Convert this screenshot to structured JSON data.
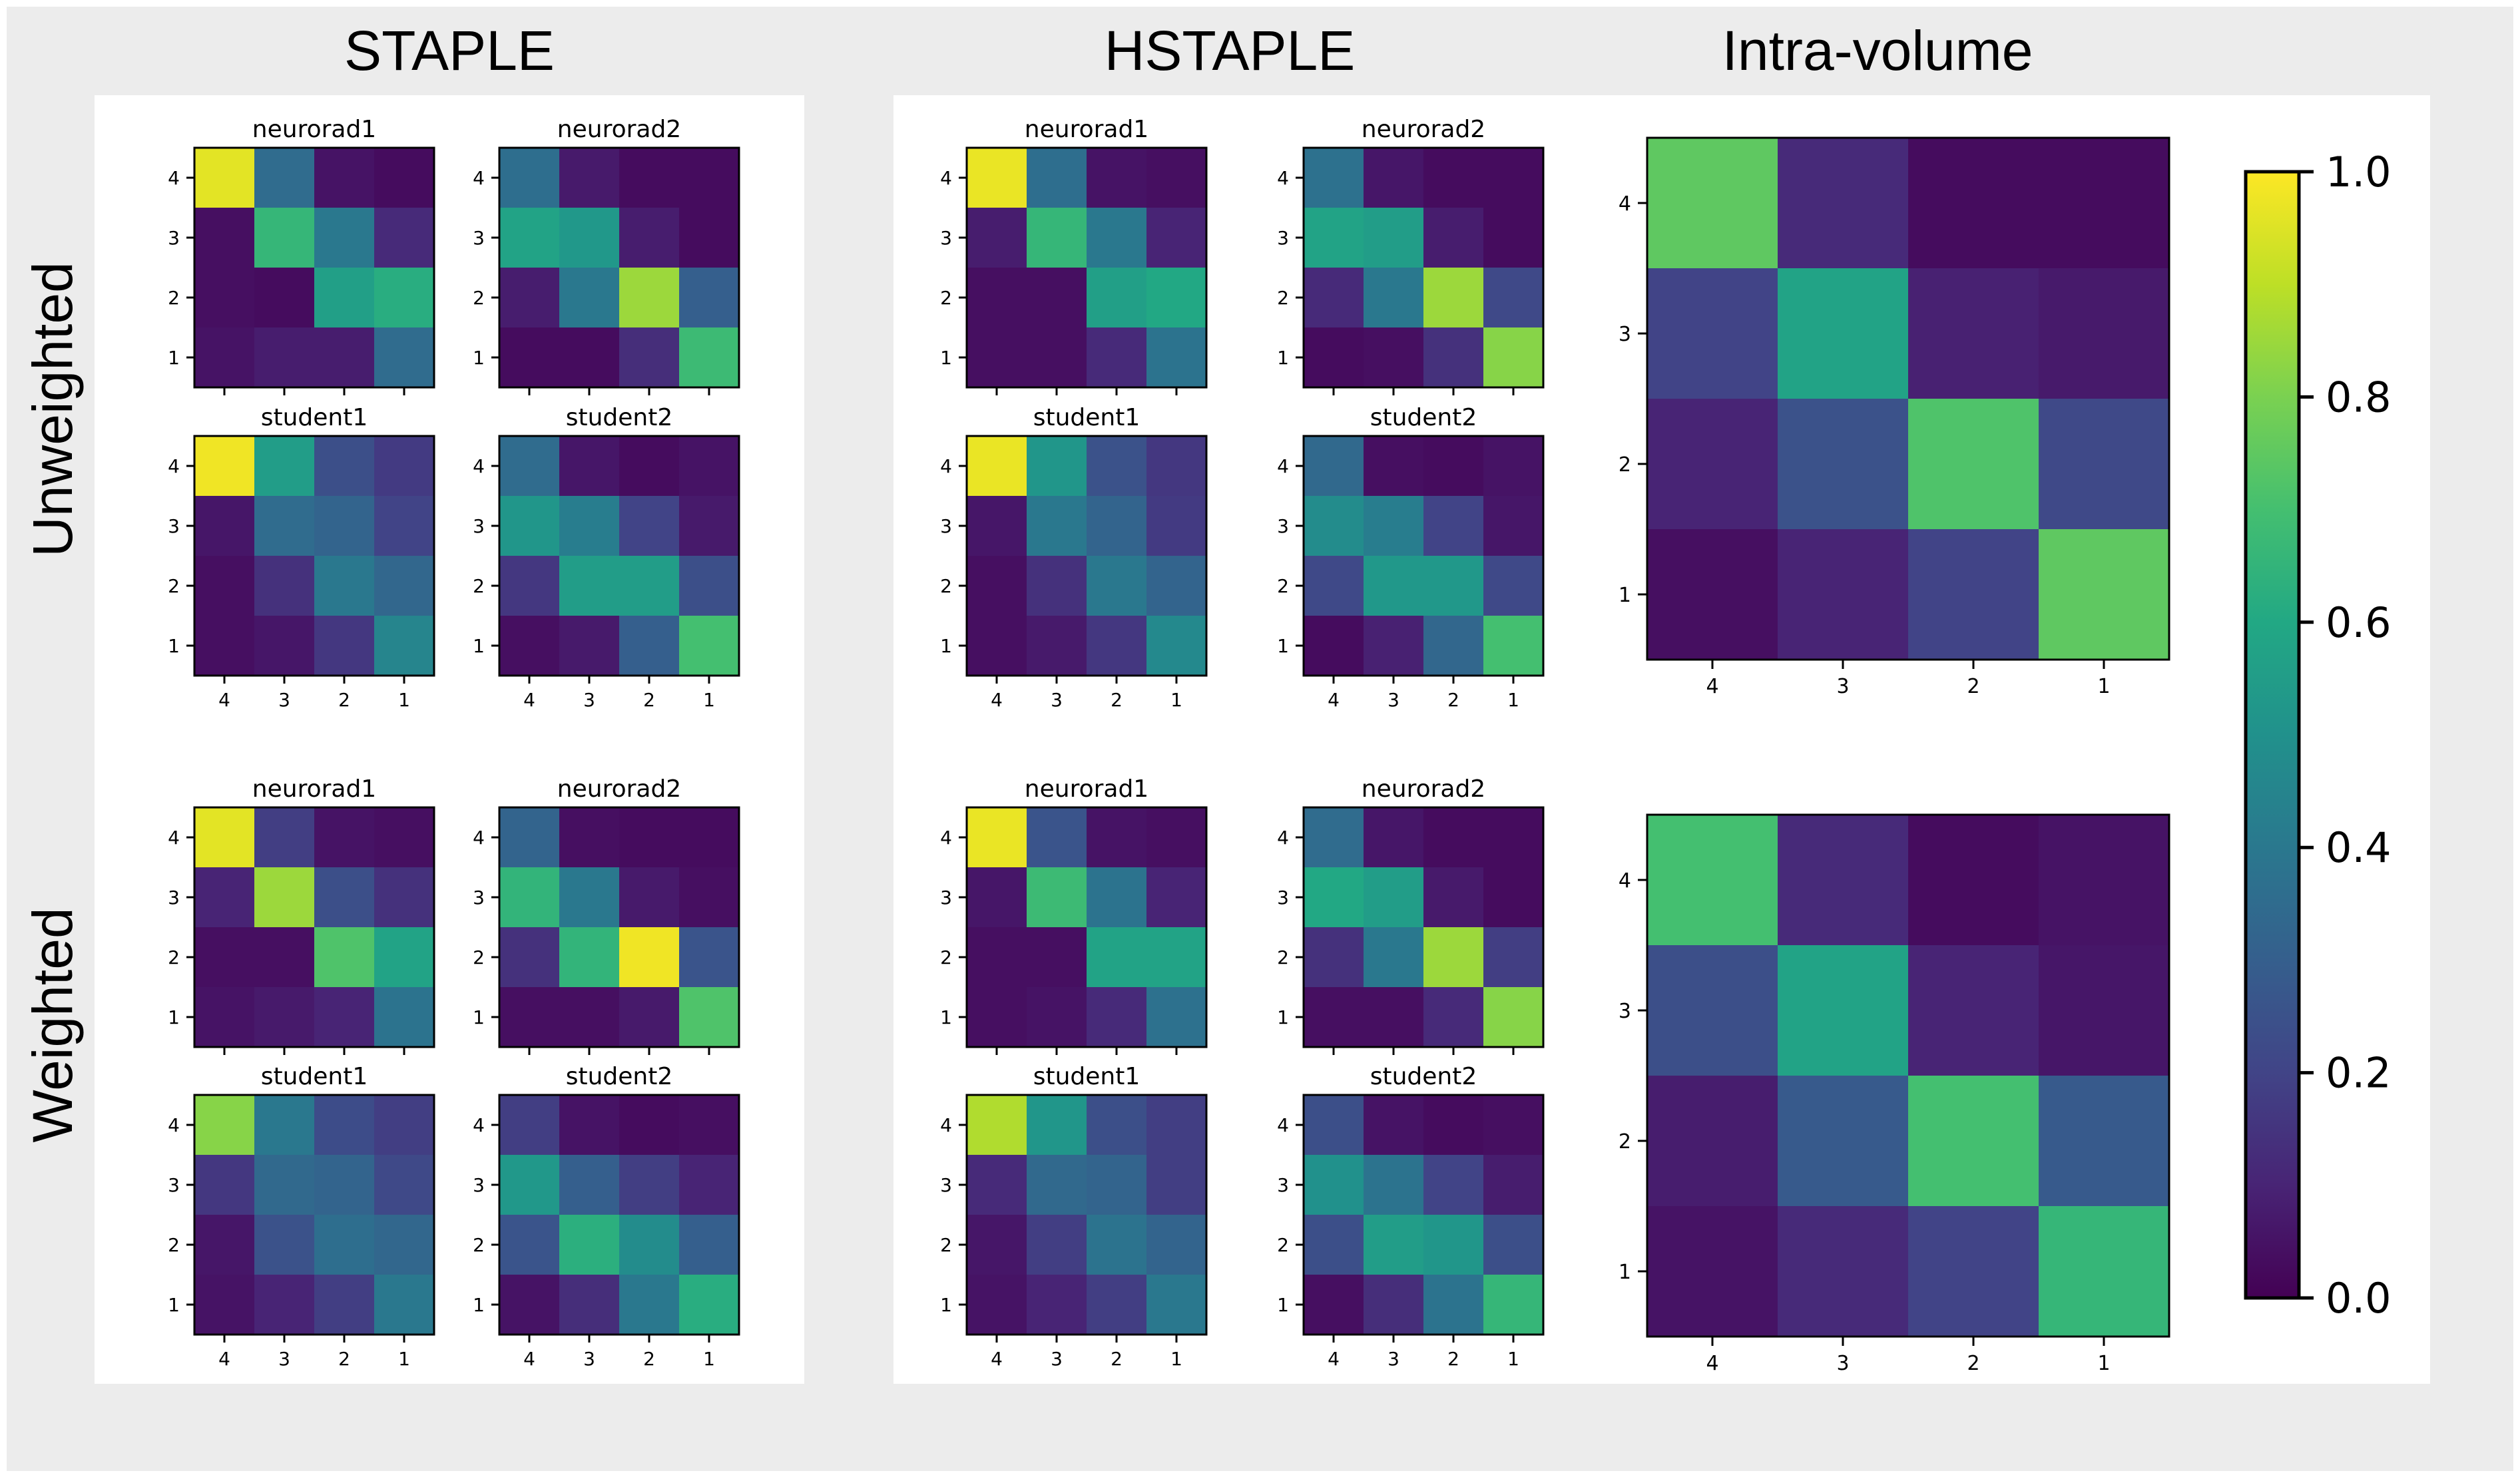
{
  "figure": {
    "column_titles": [
      "STAPLE",
      "HSTAPLE",
      "Intra-volume"
    ],
    "row_titles": [
      "Unweighted",
      "Weighted"
    ]
  },
  "colorbar": {
    "min": 0.0,
    "max": 1.0,
    "ticks": [
      "0.0",
      "0.2",
      "0.4",
      "0.6",
      "0.8",
      "1.0"
    ]
  },
  "chart_data": {
    "type": "heatmap",
    "colormap": "viridis",
    "row_labels": [
      "4",
      "3",
      "2",
      "1"
    ],
    "col_labels": [
      "4",
      "3",
      "2",
      "1"
    ],
    "panels": [
      {
        "id": "staple-unweighted-neurorad1",
        "method": "STAPLE",
        "weighting": "Unweighted",
        "title": "neurorad1",
        "values": [
          [
            0.96,
            0.35,
            0.05,
            0.03
          ],
          [
            0.04,
            0.66,
            0.4,
            0.12
          ],
          [
            0.04,
            0.03,
            0.56,
            0.62
          ],
          [
            0.05,
            0.08,
            0.08,
            0.35
          ]
        ]
      },
      {
        "id": "staple-unweighted-neurorad2",
        "method": "STAPLE",
        "weighting": "Unweighted",
        "title": "neurorad2",
        "values": [
          [
            0.36,
            0.07,
            0.03,
            0.03
          ],
          [
            0.58,
            0.53,
            0.08,
            0.03
          ],
          [
            0.08,
            0.4,
            0.85,
            0.3
          ],
          [
            0.03,
            0.03,
            0.13,
            0.68
          ]
        ]
      },
      {
        "id": "staple-unweighted-student1",
        "method": "STAPLE",
        "weighting": "Unweighted",
        "title": "student1",
        "values": [
          [
            0.98,
            0.55,
            0.24,
            0.17
          ],
          [
            0.06,
            0.35,
            0.32,
            0.2
          ],
          [
            0.04,
            0.14,
            0.4,
            0.33
          ],
          [
            0.04,
            0.06,
            0.16,
            0.45
          ]
        ]
      },
      {
        "id": "staple-unweighted-student2",
        "method": "STAPLE",
        "weighting": "Unweighted",
        "title": "student2",
        "values": [
          [
            0.35,
            0.06,
            0.03,
            0.05
          ],
          [
            0.52,
            0.42,
            0.2,
            0.07
          ],
          [
            0.16,
            0.55,
            0.55,
            0.24
          ],
          [
            0.04,
            0.07,
            0.3,
            0.7
          ]
        ]
      },
      {
        "id": "hstaple-unweighted-neurorad1",
        "method": "HSTAPLE",
        "weighting": "Unweighted",
        "title": "neurorad1",
        "values": [
          [
            0.97,
            0.36,
            0.05,
            0.04
          ],
          [
            0.08,
            0.66,
            0.4,
            0.1
          ],
          [
            0.04,
            0.04,
            0.56,
            0.6
          ],
          [
            0.04,
            0.04,
            0.12,
            0.38
          ]
        ]
      },
      {
        "id": "hstaple-unweighted-neurorad2",
        "method": "HSTAPLE",
        "weighting": "Unweighted",
        "title": "neurorad2",
        "values": [
          [
            0.37,
            0.06,
            0.03,
            0.03
          ],
          [
            0.58,
            0.55,
            0.08,
            0.03
          ],
          [
            0.12,
            0.4,
            0.85,
            0.22
          ],
          [
            0.03,
            0.04,
            0.14,
            0.82
          ]
        ]
      },
      {
        "id": "hstaple-unweighted-student1",
        "method": "HSTAPLE",
        "weighting": "Unweighted",
        "title": "student1",
        "values": [
          [
            0.97,
            0.52,
            0.25,
            0.16
          ],
          [
            0.06,
            0.4,
            0.32,
            0.17
          ],
          [
            0.04,
            0.14,
            0.4,
            0.32
          ],
          [
            0.04,
            0.07,
            0.16,
            0.47
          ]
        ]
      },
      {
        "id": "hstaple-unweighted-student2",
        "method": "HSTAPLE",
        "weighting": "Unweighted",
        "title": "student2",
        "values": [
          [
            0.34,
            0.04,
            0.03,
            0.05
          ],
          [
            0.48,
            0.42,
            0.2,
            0.06
          ],
          [
            0.22,
            0.53,
            0.53,
            0.22
          ],
          [
            0.03,
            0.09,
            0.33,
            0.7
          ]
        ]
      },
      {
        "id": "intra-unweighted",
        "method": "Intra-volume",
        "weighting": "Unweighted",
        "title": "",
        "values": [
          [
            0.75,
            0.12,
            0.03,
            0.03
          ],
          [
            0.2,
            0.58,
            0.09,
            0.07
          ],
          [
            0.1,
            0.25,
            0.72,
            0.22
          ],
          [
            0.04,
            0.1,
            0.2,
            0.75
          ]
        ]
      },
      {
        "id": "staple-weighted-neurorad1",
        "method": "STAPLE",
        "weighting": "Weighted",
        "title": "neurorad1",
        "values": [
          [
            0.96,
            0.18,
            0.05,
            0.04
          ],
          [
            0.1,
            0.85,
            0.24,
            0.14
          ],
          [
            0.04,
            0.04,
            0.72,
            0.58
          ],
          [
            0.05,
            0.07,
            0.1,
            0.38
          ]
        ]
      },
      {
        "id": "staple-weighted-neurorad2",
        "method": "STAPLE",
        "weighting": "Weighted",
        "title": "neurorad2",
        "values": [
          [
            0.32,
            0.04,
            0.03,
            0.03
          ],
          [
            0.65,
            0.4,
            0.07,
            0.04
          ],
          [
            0.14,
            0.65,
            0.98,
            0.26
          ],
          [
            0.04,
            0.04,
            0.07,
            0.72
          ]
        ]
      },
      {
        "id": "staple-weighted-student1",
        "method": "STAPLE",
        "weighting": "Weighted",
        "title": "student1",
        "values": [
          [
            0.82,
            0.4,
            0.23,
            0.18
          ],
          [
            0.16,
            0.34,
            0.32,
            0.22
          ],
          [
            0.06,
            0.25,
            0.36,
            0.33
          ],
          [
            0.05,
            0.1,
            0.18,
            0.4
          ]
        ]
      },
      {
        "id": "staple-weighted-student2",
        "method": "STAPLE",
        "weighting": "Weighted",
        "title": "student2",
        "values": [
          [
            0.18,
            0.05,
            0.03,
            0.04
          ],
          [
            0.53,
            0.3,
            0.18,
            0.1
          ],
          [
            0.26,
            0.63,
            0.48,
            0.3
          ],
          [
            0.05,
            0.13,
            0.4,
            0.62
          ]
        ]
      },
      {
        "id": "hstaple-weighted-neurorad1",
        "method": "HSTAPLE",
        "weighting": "Weighted",
        "title": "neurorad1",
        "values": [
          [
            0.97,
            0.26,
            0.05,
            0.04
          ],
          [
            0.06,
            0.68,
            0.38,
            0.1
          ],
          [
            0.04,
            0.04,
            0.58,
            0.58
          ],
          [
            0.04,
            0.05,
            0.12,
            0.37
          ]
        ]
      },
      {
        "id": "hstaple-weighted-neurorad2",
        "method": "HSTAPLE",
        "weighting": "Weighted",
        "title": "neurorad2",
        "values": [
          [
            0.35,
            0.06,
            0.03,
            0.03
          ],
          [
            0.6,
            0.55,
            0.07,
            0.03
          ],
          [
            0.14,
            0.4,
            0.85,
            0.18
          ],
          [
            0.04,
            0.04,
            0.12,
            0.82
          ]
        ]
      },
      {
        "id": "hstaple-weighted-student1",
        "method": "HSTAPLE",
        "weighting": "Weighted",
        "title": "student1",
        "values": [
          [
            0.88,
            0.52,
            0.24,
            0.18
          ],
          [
            0.12,
            0.34,
            0.32,
            0.18
          ],
          [
            0.06,
            0.18,
            0.38,
            0.32
          ],
          [
            0.05,
            0.1,
            0.18,
            0.4
          ]
        ]
      },
      {
        "id": "hstaple-weighted-student2",
        "method": "HSTAPLE",
        "weighting": "Weighted",
        "title": "student2",
        "values": [
          [
            0.24,
            0.05,
            0.03,
            0.04
          ],
          [
            0.5,
            0.38,
            0.2,
            0.08
          ],
          [
            0.24,
            0.55,
            0.52,
            0.24
          ],
          [
            0.04,
            0.13,
            0.38,
            0.66
          ]
        ]
      },
      {
        "id": "intra-weighted",
        "method": "Intra-volume",
        "weighting": "Weighted",
        "title": "",
        "values": [
          [
            0.7,
            0.12,
            0.03,
            0.05
          ],
          [
            0.24,
            0.58,
            0.1,
            0.06
          ],
          [
            0.08,
            0.28,
            0.7,
            0.28
          ],
          [
            0.05,
            0.12,
            0.2,
            0.66
          ]
        ]
      }
    ]
  }
}
